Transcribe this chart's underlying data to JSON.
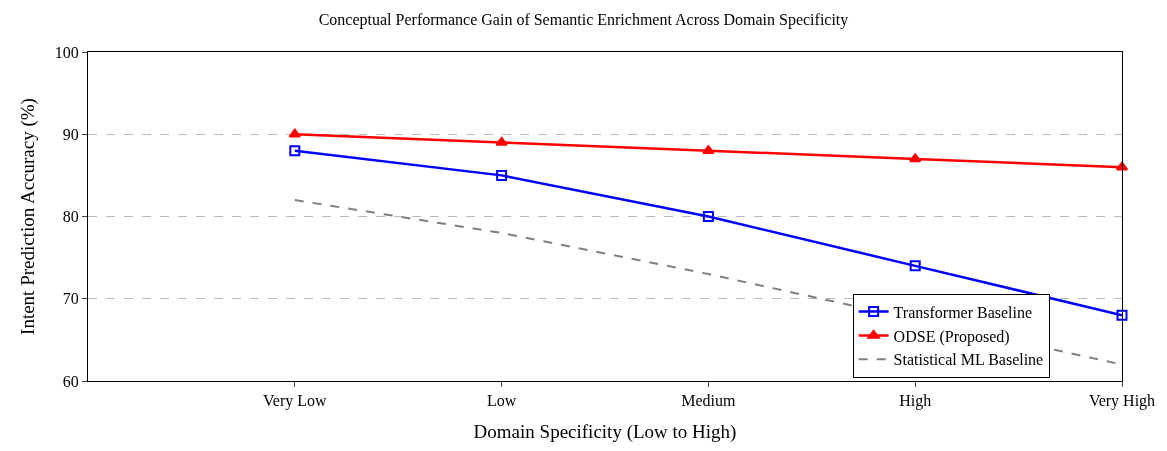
{
  "chart_data": {
    "type": "line",
    "title": "Conceptual Performance Gain of Semantic Enrichment Across Domain Specificity",
    "xlabel": "Domain Specificity (Low to High)",
    "ylabel": "Intent Prediction Accuracy (%)",
    "categories": [
      "Very Low",
      "Low",
      "Medium",
      "High",
      "Very High"
    ],
    "series": [
      {
        "name": "Transformer Baseline",
        "color": "#0000ff",
        "values": [
          88,
          85,
          80,
          74,
          68
        ],
        "marker": "square",
        "line_style": "solid"
      },
      {
        "name": "ODSE (Proposed)",
        "color": "#ff0000",
        "values": [
          90,
          89,
          88,
          87,
          86
        ],
        "marker": "triangle",
        "line_style": "solid"
      },
      {
        "name": "Statistical ML Baseline",
        "color": "#808080",
        "values": [
          82,
          78,
          73,
          null,
          62
        ],
        "marker": "none",
        "line_style": "dashed"
      }
    ],
    "ylim": [
      60,
      100
    ],
    "yticks": [
      60,
      70,
      80,
      90,
      100
    ],
    "grid": "y",
    "legend": "bottom right"
  }
}
